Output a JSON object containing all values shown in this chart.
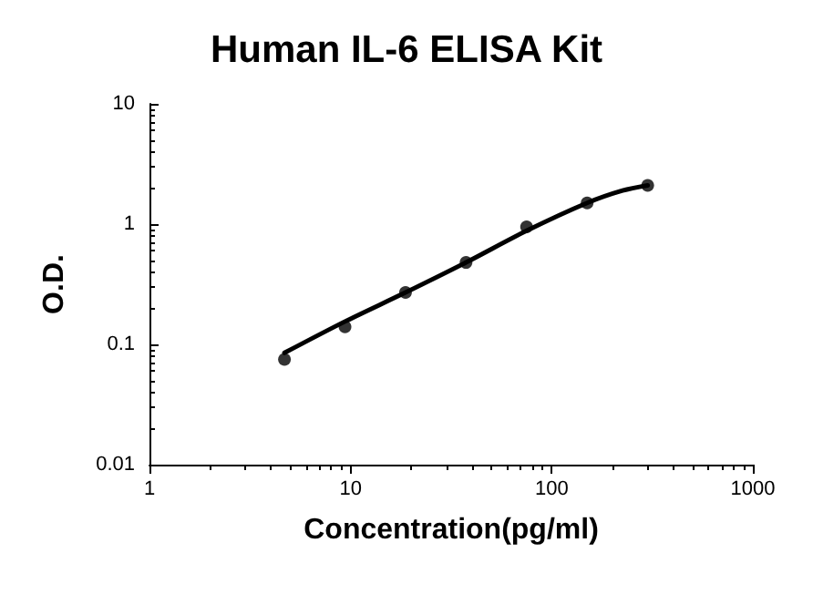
{
  "chart_data": {
    "type": "scatter",
    "title": "Human IL-6 ELISA Kit",
    "xlabel": "Concentration(pg/ml)",
    "ylabel": "O.D.",
    "log": "xy",
    "xlim": [
      1,
      1000
    ],
    "xticks": [
      1,
      10,
      100,
      1000
    ],
    "ylim": [
      0.01,
      10
    ],
    "yticks": [
      0.01,
      0.1,
      1,
      10
    ],
    "grid": false,
    "marker": "circle",
    "series": [
      {
        "color": "#000000",
        "x": [
          4.69,
          9.38,
          18.75,
          37.5,
          75,
          150,
          300
        ],
        "values": [
          0.075,
          0.14,
          0.27,
          0.48,
          0.95,
          1.5,
          2.1
        ]
      },
      {
        "type": "line",
        "color": "#000000",
        "marker": "none",
        "line_style": "solid",
        "x": [
          4.69,
          9.38,
          18.75,
          37.5,
          75,
          150,
          225,
          300
        ],
        "values": [
          0.085,
          0.155,
          0.27,
          0.48,
          0.88,
          1.5,
          1.9,
          2.1
        ]
      }
    ]
  }
}
